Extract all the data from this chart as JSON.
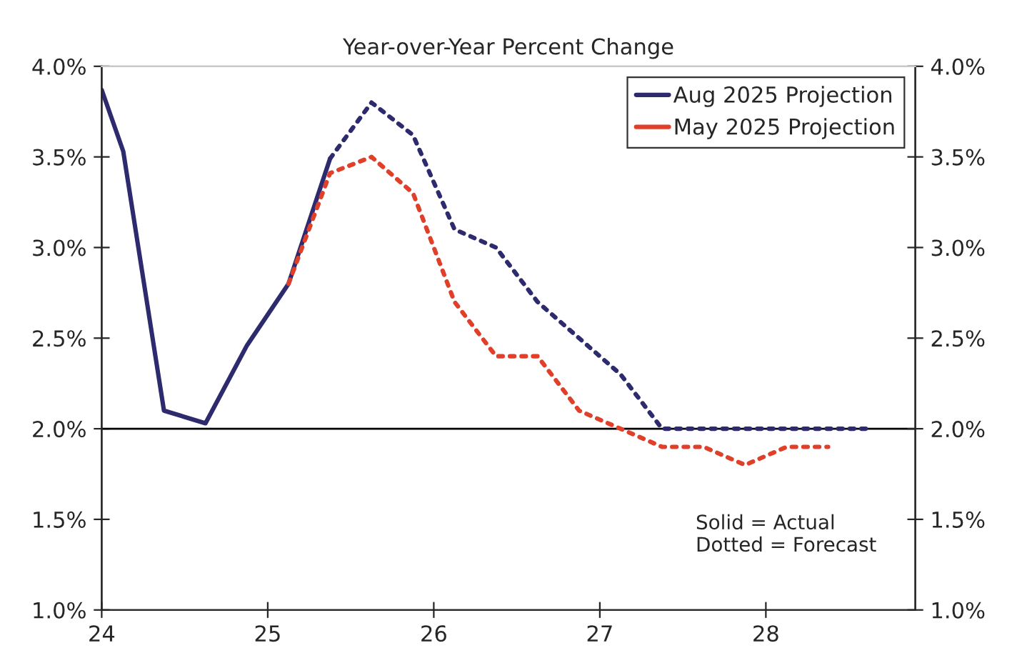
{
  "chart_data": {
    "type": "line",
    "title": "Year-over-Year Percent Change",
    "xlim": [
      24,
      28.9
    ],
    "xticks": [
      24,
      25,
      26,
      27,
      28
    ],
    "ylim": [
      1.0,
      4.0
    ],
    "yticks": [
      {
        "value": 1.0,
        "label": "1.0%"
      },
      {
        "value": 1.5,
        "label": "1.5%"
      },
      {
        "value": 2.0,
        "label": "2.0%"
      },
      {
        "value": 2.5,
        "label": "2.5%"
      },
      {
        "value": 3.0,
        "label": "3.0%"
      },
      {
        "value": 3.5,
        "label": "3.5%"
      },
      {
        "value": 4.0,
        "label": "4.0%"
      }
    ],
    "y2lim": [
      1.0,
      4.0
    ],
    "y2ticks": [
      {
        "value": 1.0,
        "label": "1.0%"
      },
      {
        "value": 1.5,
        "label": "1.5%"
      },
      {
        "value": 2.0,
        "label": "2.0%"
      },
      {
        "value": 2.5,
        "label": "2.5%"
      },
      {
        "value": 3.0,
        "label": "3.0%"
      },
      {
        "value": 3.5,
        "label": "3.5%"
      },
      {
        "value": 4.0,
        "label": "4.0%"
      }
    ],
    "series": [
      {
        "name": "Aug 2025 Projection",
        "color": "#2e2a6e",
        "line_style": "solid",
        "x": [
          24.0,
          24.13,
          24.375,
          24.625,
          24.875,
          25.125,
          25.375
        ],
        "values": [
          3.87,
          3.53,
          2.1,
          2.03,
          2.46,
          2.8,
          3.49
        ]
      },
      {
        "color": "#2e2a6e",
        "line_style": "dotted",
        "x": [
          25.375,
          25.625,
          25.875,
          26.125,
          26.375,
          26.625,
          26.875,
          27.125,
          27.375,
          27.625,
          27.875,
          28.125,
          28.375,
          28.625
        ],
        "values": [
          3.49,
          3.8,
          3.62,
          3.1,
          3.0,
          2.7,
          2.5,
          2.3,
          2.0,
          2.0,
          2.0,
          2.0,
          2.0,
          2.0
        ]
      },
      {
        "name": "May 2025 Projection",
        "color": "#e0402a",
        "line_style": "dotted",
        "x": [
          25.125,
          25.375,
          25.625,
          25.875,
          26.125,
          26.375,
          26.625,
          26.875,
          27.125,
          27.375,
          27.625,
          27.875,
          28.125,
          28.375
        ],
        "values": [
          2.8,
          3.41,
          3.5,
          3.3,
          2.7,
          2.4,
          2.4,
          2.1,
          2.0,
          1.9,
          1.9,
          1.8,
          1.9,
          1.9
        ]
      }
    ],
    "ref_lines": [
      {
        "axis": "y",
        "value": 2.0,
        "color": "#000000",
        "line_style": "solid"
      }
    ],
    "annotations": [
      "Solid = Actual\nDotted = Forecast"
    ],
    "legend": "top right",
    "grid": false
  }
}
